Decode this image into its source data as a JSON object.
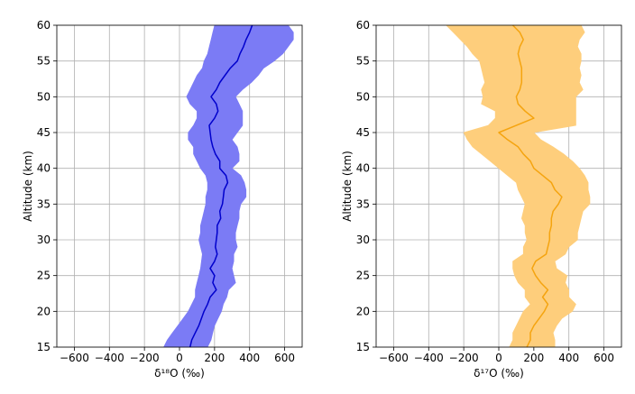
{
  "chart_data": [
    {
      "type": "line",
      "xlabel": "δ¹⁸O (‰)",
      "ylabel": "Altitude (km)",
      "xlim": [
        -700,
        700
      ],
      "ylim": [
        15,
        60
      ],
      "xticks": [
        -600,
        -400,
        -200,
        0,
        200,
        400,
        600
      ],
      "yticks": [
        15,
        20,
        25,
        30,
        35,
        40,
        45,
        50,
        55,
        60
      ],
      "grid": true,
      "band_color": "#7b7bf5",
      "line_color": "#0000cc",
      "series": [
        {
          "altitude": [
            15,
            16,
            17,
            18,
            19,
            20,
            21,
            22,
            23,
            24,
            25,
            26,
            27,
            28,
            29,
            30,
            31,
            32,
            33,
            34,
            35,
            36,
            37,
            38,
            39,
            40,
            41,
            42,
            43,
            44,
            45,
            46,
            47,
            48,
            49,
            50,
            51,
            52,
            53,
            54,
            55,
            56,
            57,
            58,
            59,
            60
          ],
          "mean": [
            60,
            70,
            90,
            110,
            125,
            140,
            160,
            175,
            210,
            190,
            200,
            175,
            200,
            215,
            205,
            210,
            215,
            215,
            235,
            230,
            245,
            250,
            255,
            275,
            265,
            230,
            230,
            205,
            190,
            180,
            175,
            170,
            200,
            220,
            210,
            180,
            210,
            230,
            260,
            290,
            330,
            345,
            365,
            380,
            400,
            415
          ],
          "lower": [
            -90,
            -70,
            -40,
            -10,
            20,
            50,
            70,
            90,
            90,
            100,
            110,
            120,
            125,
            130,
            120,
            110,
            120,
            120,
            130,
            140,
            150,
            150,
            160,
            160,
            150,
            120,
            100,
            80,
            80,
            50,
            50,
            80,
            100,
            100,
            60,
            40,
            60,
            80,
            100,
            130,
            140,
            160,
            170,
            180,
            190,
            200
          ],
          "upper": [
            160,
            180,
            190,
            200,
            220,
            240,
            250,
            270,
            280,
            320,
            310,
            300,
            310,
            310,
            330,
            320,
            320,
            330,
            340,
            340,
            350,
            380,
            380,
            370,
            350,
            300,
            340,
            340,
            330,
            300,
            330,
            360,
            360,
            360,
            340,
            320,
            360,
            410,
            450,
            480,
            540,
            590,
            620,
            650,
            650,
            620
          ]
        }
      ]
    },
    {
      "type": "line",
      "xlabel": "δ¹⁷O (‰)",
      "ylabel": "Altitude (km)",
      "xlim": [
        -700,
        700
      ],
      "ylim": [
        15,
        60
      ],
      "xticks": [
        -600,
        -400,
        -200,
        0,
        200,
        400,
        600
      ],
      "yticks": [
        15,
        20,
        25,
        30,
        35,
        40,
        45,
        50,
        55,
        60
      ],
      "grid": true,
      "band_color": "#fece7c",
      "line_color": "#f5a40f",
      "series": [
        {
          "altitude": [
            15,
            16,
            17,
            18,
            19,
            20,
            21,
            22,
            23,
            24,
            25,
            26,
            27,
            28,
            29,
            30,
            31,
            32,
            33,
            34,
            35,
            36,
            37,
            38,
            39,
            40,
            41,
            42,
            43,
            44,
            45,
            46,
            47,
            48,
            49,
            50,
            51,
            52,
            53,
            54,
            55,
            56,
            57,
            58,
            59,
            60
          ],
          "mean": [
            160,
            180,
            180,
            200,
            230,
            260,
            280,
            250,
            280,
            240,
            210,
            190,
            210,
            270,
            280,
            290,
            290,
            300,
            300,
            310,
            340,
            360,
            320,
            300,
            250,
            200,
            180,
            140,
            110,
            50,
            0,
            100,
            200,
            150,
            110,
            100,
            120,
            130,
            130,
            130,
            120,
            110,
            120,
            140,
            120,
            80
          ],
          "lower": [
            60,
            80,
            80,
            100,
            120,
            140,
            180,
            150,
            150,
            110,
            90,
            80,
            80,
            140,
            140,
            160,
            150,
            150,
            130,
            140,
            150,
            130,
            110,
            100,
            50,
            0,
            -50,
            -100,
            -150,
            -180,
            -200,
            -60,
            -20,
            -20,
            -100,
            -90,
            -100,
            -80,
            -90,
            -100,
            -110,
            -150,
            -180,
            -220,
            -260,
            -300
          ],
          "upper": [
            320,
            320,
            310,
            330,
            360,
            420,
            440,
            400,
            400,
            380,
            390,
            330,
            320,
            380,
            400,
            450,
            450,
            460,
            470,
            480,
            520,
            520,
            510,
            510,
            490,
            460,
            420,
            370,
            310,
            240,
            200,
            440,
            440,
            440,
            440,
            440,
            480,
            460,
            470,
            460,
            470,
            470,
            450,
            460,
            490,
            470
          ]
        }
      ]
    }
  ]
}
